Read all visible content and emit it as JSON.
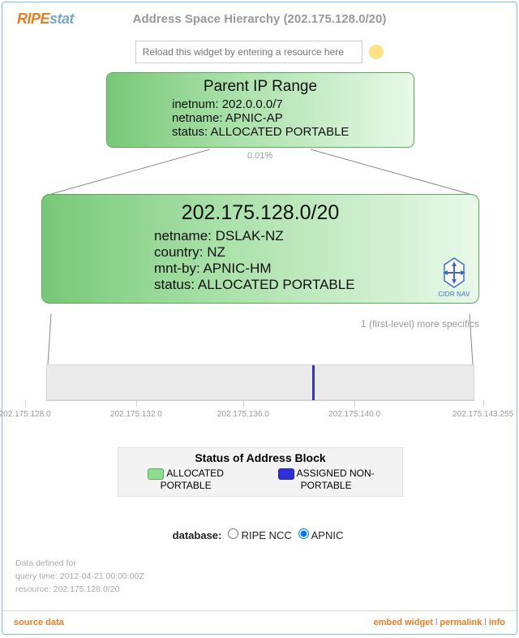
{
  "brand": {
    "ripe": "RIPE",
    "stat": "stat"
  },
  "title": "Address Space Hierarchy (202.175.128.0/20)",
  "search": {
    "placeholder": "Reload this widget by entering a resource here"
  },
  "parent": {
    "heading": "Parent IP Range",
    "inetnum": "inetnum: 202.0.0.0/7",
    "netname": "netname: APNIC-AP",
    "status": "status: ALLOCATED PORTABLE",
    "box": {
      "border": "#5aa85a",
      "grad_from": "#78c878",
      "grad_mid": "#a8e0a8",
      "grad_to": "#e8f8e8"
    }
  },
  "pct_label": "0.01%",
  "focus": {
    "heading": "202.175.128.0/20",
    "netname": "netname: DSLAK-NZ",
    "country": "country: NZ",
    "mntby": "mnt-by: APNIC-HM",
    "status": "status: ALLOCATED PORTABLE",
    "cidr_nav": "CIDR NAV",
    "box": {
      "border": "#5aa85a",
      "grad_from": "#78c878",
      "grad_mid": "#a8e0a8",
      "grad_to": "#e8f8e8"
    }
  },
  "more_specifics": "1 (first-level) more specifics",
  "child_bar": {
    "bg": "#eaeaea",
    "mark_color": "#3030d8",
    "mark_pos_pct": 62
  },
  "axis": {
    "ticks": [
      {
        "pos_pct": -5,
        "label": "202.175.128.0"
      },
      {
        "pos_pct": 21,
        "label": "202.175.132.0"
      },
      {
        "pos_pct": 46,
        "label": "202.175.136.0"
      },
      {
        "pos_pct": 72,
        "label": "202.175.140.0"
      },
      {
        "pos_pct": 102,
        "label": "202.175.143.255"
      }
    ],
    "tick_color": "#d0d0d0",
    "label_color": "#999999"
  },
  "legend": {
    "title": "Status of Address Block",
    "items": [
      {
        "color": "#8fde8f",
        "border": "#5aa85a",
        "label": "ALLOCATED PORTABLE"
      },
      {
        "color": "#3030d8",
        "border": "#2020a8",
        "label": "ASSIGNED NON-PORTABLE"
      }
    ]
  },
  "db": {
    "label": "database:",
    "options": [
      {
        "label": "RIPE NCC",
        "checked": false
      },
      {
        "label": "APNIC",
        "checked": true
      }
    ]
  },
  "meta": {
    "l1": "Data defined for",
    "l2": "query time: 2012-04-21 00:00:00Z",
    "l3": "resource: 202.175.128.0/20"
  },
  "footer": {
    "source": "source data",
    "embed": "embed widget",
    "perma": "permalink",
    "info": "info"
  },
  "connector_color": "#888888"
}
